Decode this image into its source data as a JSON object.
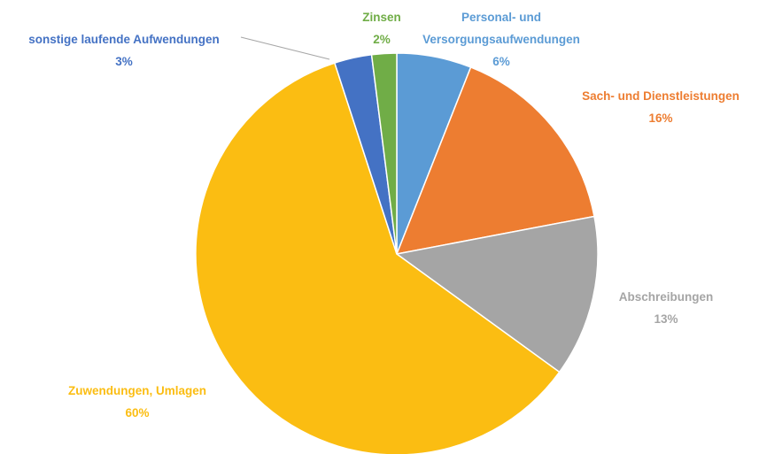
{
  "chart_data": {
    "type": "pie",
    "categories": [
      "Personal- und Versorgungsaufwendungen",
      "Sach- und Dienstleistungen",
      "Abschreibungen",
      "Zuwendungen, Umlagen",
      "sonstige laufende Aufwendungen",
      "Zinsen"
    ],
    "values": [
      6,
      16,
      13,
      60,
      3,
      2
    ],
    "value_labels": [
      "6%",
      "16%",
      "13%",
      "60%",
      "3%",
      "2%"
    ],
    "colors": [
      "#5b9bd5",
      "#ed7d31",
      "#a5a5a5",
      "#fbbd12",
      "#4472c4",
      "#70ad47"
    ]
  }
}
